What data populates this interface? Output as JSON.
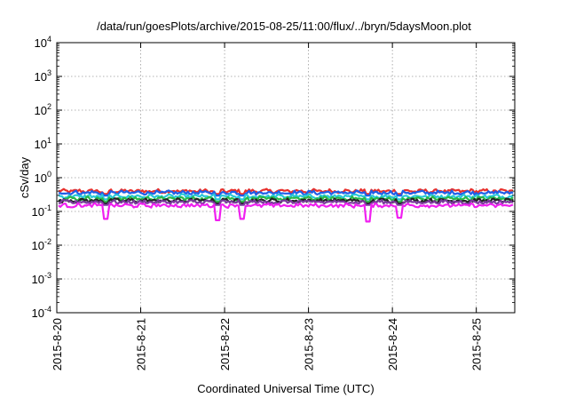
{
  "chart_data": {
    "type": "line",
    "title": "/data/run/goesPlots/archive/2015-08-25/11:00/flux/../bryn/5daysMoon.plot",
    "xlabel": "Coordinated Universal Time (UTC)",
    "ylabel": "cSv/day",
    "y_scale": "log",
    "y_ticks": [
      {
        "base": "10",
        "exp": "-4"
      },
      {
        "base": "10",
        "exp": "-3"
      },
      {
        "base": "10",
        "exp": "-2"
      },
      {
        "base": "10",
        "exp": "-1"
      },
      {
        "base": "10",
        "exp": "0"
      },
      {
        "base": "10",
        "exp": "1"
      },
      {
        "base": "10",
        "exp": "2"
      },
      {
        "base": "10",
        "exp": "3"
      },
      {
        "base": "10",
        "exp": "4"
      }
    ],
    "ylim": [
      0.0001,
      10000
    ],
    "x_ticks": [
      "2015-8-20",
      "2015-8-21",
      "2015-8-22",
      "2015-8-23",
      "2015-8-24",
      "2015-8-25"
    ],
    "xlim": [
      "2015-08-20T00:00",
      "2015-08-25T11:00"
    ],
    "grid": true,
    "legend": "none",
    "series": [
      {
        "color": "#e8302c",
        "level": 0.4
      },
      {
        "color": "#1f5ee8",
        "level": 0.36
      },
      {
        "color": "#28c8d8",
        "level": 0.28
      },
      {
        "color": "#28b848",
        "level": 0.24
      },
      {
        "color": "#222222",
        "level": 0.21
      },
      {
        "color": "#7a3c9c",
        "level": 0.19
      },
      {
        "color": "#f020f0",
        "level": 0.15
      }
    ],
    "dips": [
      {
        "x": "2015-08-20T14:00",
        "y": 0.06
      },
      {
        "x": "2015-08-21T22:00",
        "y": 0.055
      },
      {
        "x": "2015-08-22T05:00",
        "y": 0.06
      },
      {
        "x": "2015-08-23T17:00",
        "y": 0.05
      },
      {
        "x": "2015-08-24T02:00",
        "y": 0.065
      }
    ]
  }
}
